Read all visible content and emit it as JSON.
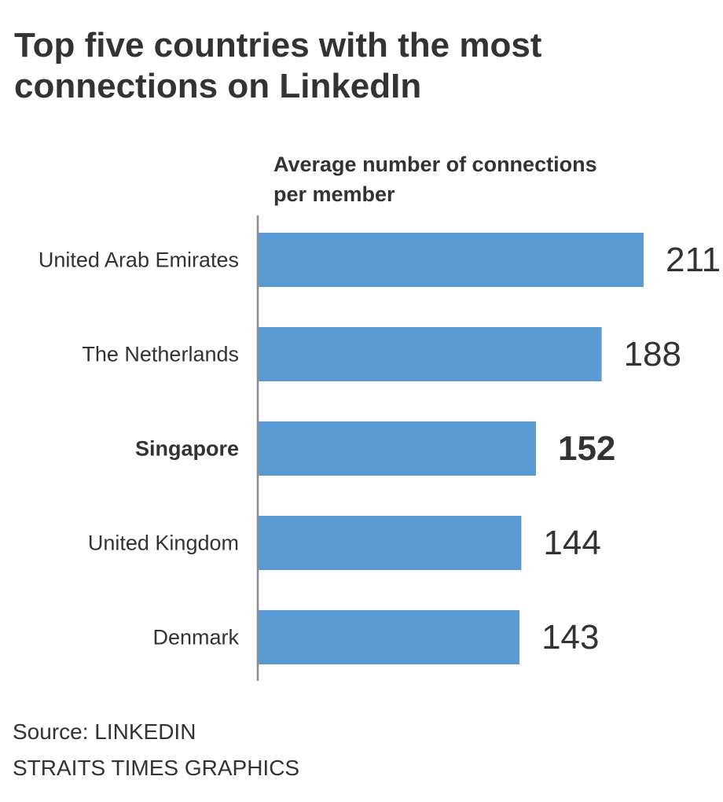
{
  "header": {
    "title_line1": "Top five countries with the most",
    "title_line2": "connections on LinkedIn",
    "subtitle_line1": "Average number of connections",
    "subtitle_line2": "per member"
  },
  "footer": {
    "source": "Source: LINKEDIN",
    "credit": "STRAITS TIMES GRAPHICS"
  },
  "colors": {
    "bar": "#5b9bd5",
    "axis": "#8c8c8c",
    "text": "#333333"
  },
  "chart_data": {
    "type": "bar",
    "orientation": "horizontal",
    "categories": [
      "United Arab Emirates",
      "The Netherlands",
      "Singapore",
      "United Kingdom",
      "Denmark"
    ],
    "values": [
      211,
      188,
      152,
      144,
      143
    ],
    "highlight": "Singapore",
    "title": "Top five countries with the most connections on LinkedIn",
    "xlabel": "Average number of connections per member",
    "ylabel": "",
    "xlim": [
      0,
      211
    ],
    "grid": false,
    "data_labels": true
  }
}
